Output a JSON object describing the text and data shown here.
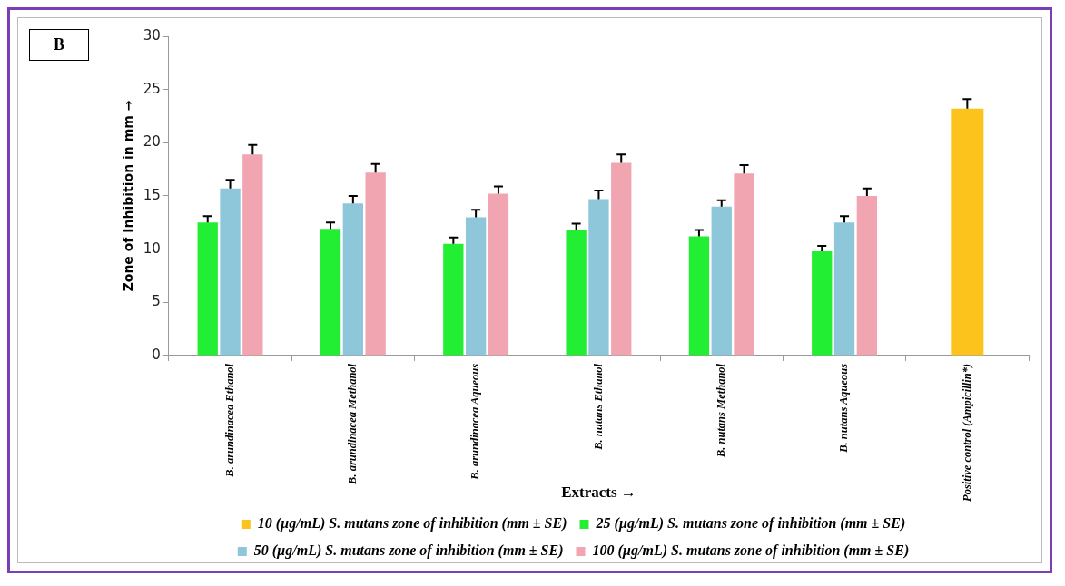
{
  "chart_data": {
    "type": "bar",
    "xlabel": "Extracts →",
    "ylabel": "Zone of Inhibition in mm →",
    "annotations": [
      "B"
    ],
    "categories": [
      "B. arundinacea Ethanol",
      "B. arundinacea Methanol",
      "B. arundinacea Aqueous",
      "B. nutans Ethanol",
      "B. nutans Methanol",
      "B. nutans Aqueous",
      "Positive control (Ampicillin*)"
    ],
    "series": [
      {
        "name": "10 (µg/mL) S. mutans zone of inhibition (mm ± SE)",
        "color": "#fbc31c",
        "values": [
          null,
          null,
          null,
          null,
          null,
          null,
          23.2
        ],
        "errors": [
          null,
          null,
          null,
          null,
          null,
          null,
          0.9
        ]
      },
      {
        "name": "25 (µg/mL) S. mutans zone of inhibition (mm ± SE)",
        "color": "#22ee33",
        "values": [
          12.5,
          11.9,
          10.5,
          11.8,
          11.2,
          9.8,
          null
        ],
        "errors": [
          0.6,
          0.6,
          0.6,
          0.6,
          0.6,
          0.5,
          null
        ]
      },
      {
        "name": "50 (µg/mL) S. mutans zone of inhibition (mm ± SE)",
        "color": "#8ec7d9",
        "values": [
          15.7,
          14.3,
          13.0,
          14.7,
          14.0,
          12.5,
          null
        ],
        "errors": [
          0.8,
          0.7,
          0.7,
          0.8,
          0.6,
          0.6,
          null
        ]
      },
      {
        "name": "100 (µg/mL) S. mutans zone of inhibition (mm ± SE)",
        "color": "#f0a5b0",
        "values": [
          18.9,
          17.2,
          15.2,
          18.1,
          17.1,
          15.0,
          null
        ],
        "errors": [
          0.9,
          0.8,
          0.7,
          0.8,
          0.8,
          0.7,
          null
        ]
      }
    ],
    "ylim": [
      0,
      30
    ],
    "yticks": [
      0,
      5,
      10,
      15,
      20,
      25,
      30
    ],
    "grid": false,
    "legend": "bottom"
  }
}
